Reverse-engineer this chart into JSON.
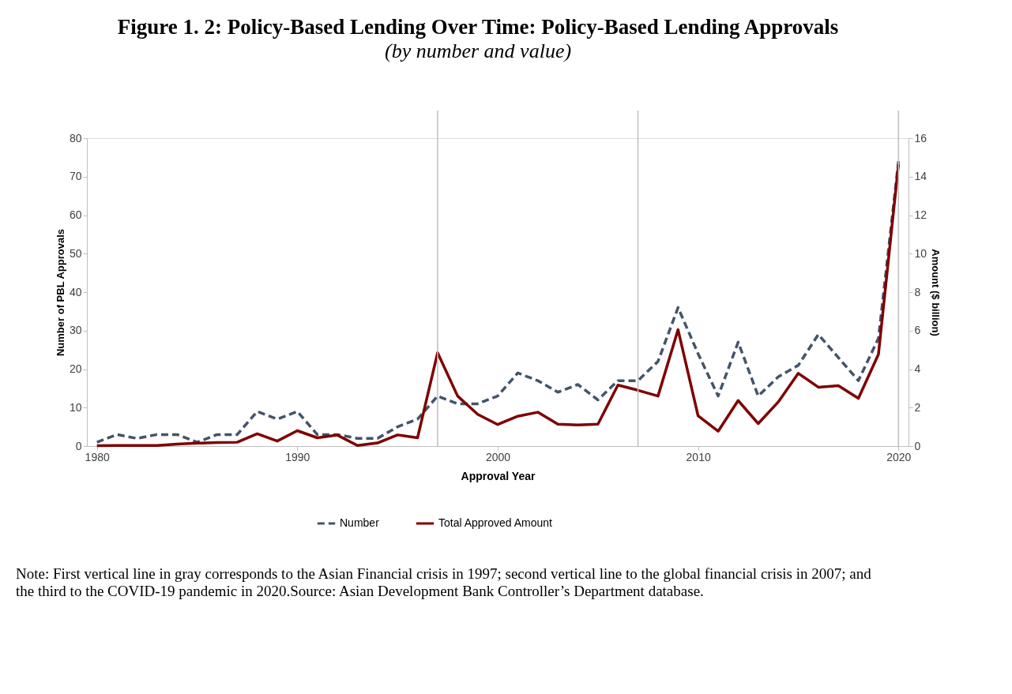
{
  "chart_data": {
    "type": "line",
    "title": "Figure 1. 2: Policy-Based Lending Over Time: Policy-Based Lending Approvals",
    "subtitle": "(by number and value)",
    "xlabel": "Approval Year",
    "ylabel": "Number of PBL Approvals",
    "y2label": "Amount ($ billion)",
    "x": [
      1980,
      1981,
      1982,
      1983,
      1984,
      1985,
      1986,
      1987,
      1988,
      1989,
      1990,
      1991,
      1992,
      1993,
      1994,
      1995,
      1996,
      1997,
      1998,
      1999,
      2000,
      2001,
      2002,
      2003,
      2004,
      2005,
      2006,
      2007,
      2008,
      2009,
      2010,
      2011,
      2012,
      2013,
      2014,
      2015,
      2016,
      2017,
      2018,
      2019,
      2020
    ],
    "series": [
      {
        "name": "Number",
        "color": "#44546a",
        "line_style": "dashed",
        "values": [
          1,
          3,
          2,
          3,
          3,
          1,
          3,
          3,
          9,
          7,
          9,
          3,
          3,
          2,
          2,
          5,
          7,
          13,
          11,
          11,
          13,
          19,
          17,
          14,
          16,
          12,
          17,
          17,
          22,
          36,
          24,
          13,
          27,
          13,
          18,
          21,
          29,
          23,
          17,
          28,
          74
        ]
      },
      {
        "name": "Total Approved Amount",
        "color": "#7f0000",
        "line_style": "solid",
        "axis": "y2",
        "values": [
          0.02,
          0.03,
          0.03,
          0.03,
          0.1,
          0.15,
          0.18,
          0.2,
          0.64,
          0.26,
          0.8,
          0.43,
          0.57,
          0.03,
          0.16,
          0.58,
          0.43,
          4.85,
          2.6,
          1.65,
          1.12,
          1.55,
          1.76,
          1.14,
          1.1,
          1.14,
          3.17,
          2.9,
          2.6,
          6.05,
          1.57,
          0.77,
          2.37,
          1.17,
          2.29,
          3.78,
          3.06,
          3.14,
          2.48,
          4.77,
          14.64
        ]
      }
    ],
    "xlim": [
      1979.5,
      2020.5
    ],
    "xticks": [
      1980,
      1990,
      2000,
      2010,
      2020
    ],
    "ylim": [
      0,
      80
    ],
    "yticks": [
      0,
      10,
      20,
      30,
      40,
      50,
      60,
      70,
      80
    ],
    "y2lim": [
      0,
      16
    ],
    "y2ticks": [
      0,
      2,
      4,
      6,
      8,
      10,
      12,
      14,
      16
    ],
    "ref_lines": [
      {
        "axis": "x",
        "value": 1997,
        "color": "#bfbfbf"
      },
      {
        "axis": "x",
        "value": 2007,
        "color": "#bfbfbf"
      },
      {
        "axis": "x",
        "value": 2020,
        "color": "#bfbfbf"
      }
    ],
    "grid": false,
    "legend": "bottom",
    "annotations": [
      "Note: First vertical line in gray corresponds to the Asian Financial crisis in 1997; second vertical line to the global financial crisis in 2007; and the third to the COVID-19 pandemic in 2020.Source: Asian Development Bank Controller’s Department database."
    ]
  }
}
